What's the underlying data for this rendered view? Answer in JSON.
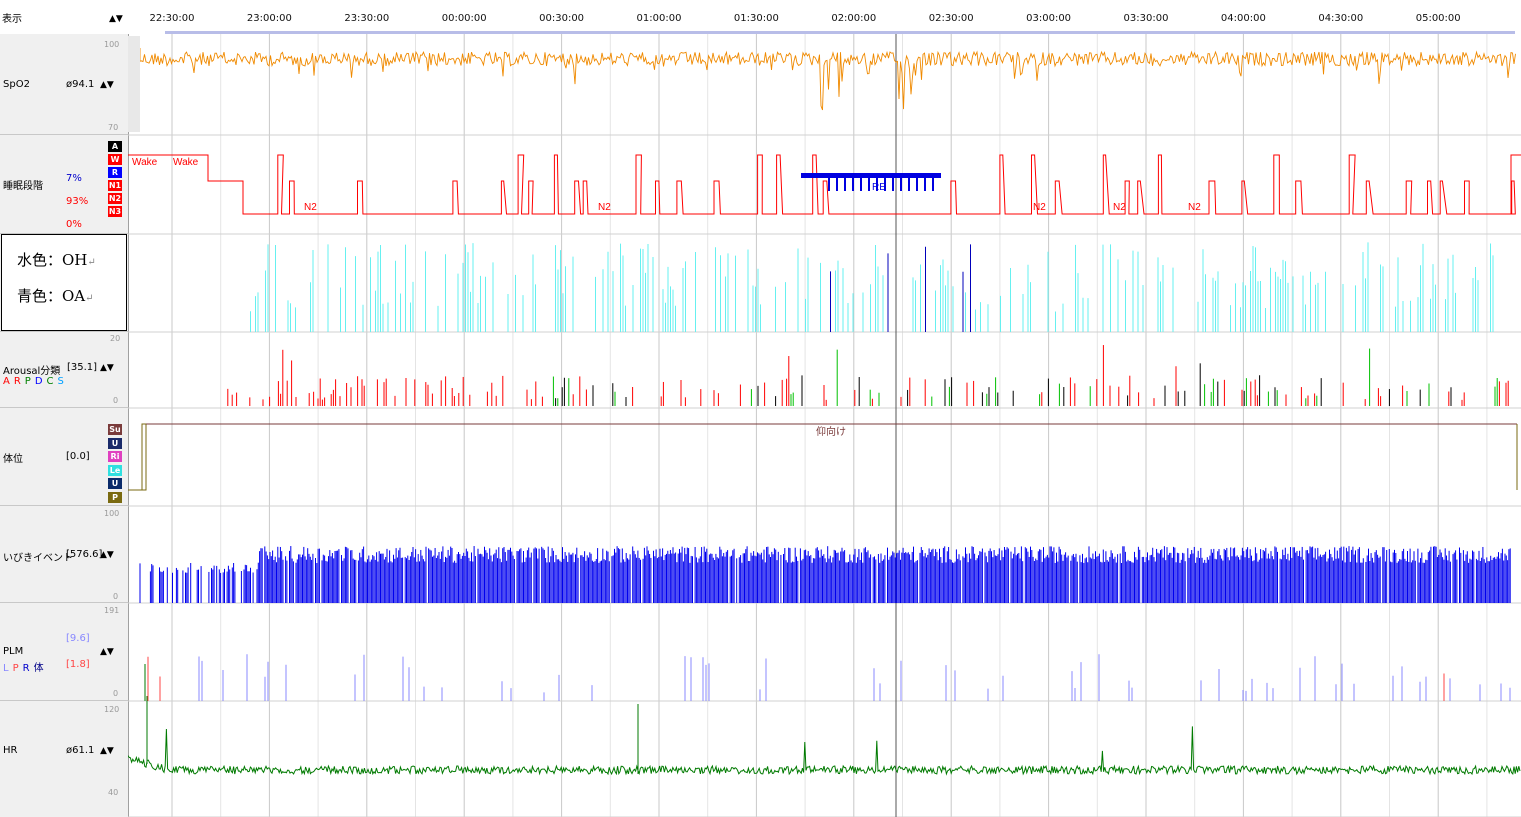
{
  "header": {
    "display_label": "表示",
    "arrows": "▲▼",
    "time_labels": [
      "22:30:00",
      "23:00:00",
      "23:30:00",
      "00:00:00",
      "00:30:00",
      "01:00:00",
      "01:30:00",
      "02:00:00",
      "02:30:00",
      "03:00:00",
      "03:30:00",
      "04:00:00",
      "04:30:00",
      "05:00:00"
    ]
  },
  "tracks": {
    "spo2": {
      "name": "SpO2",
      "avg": "ø94.1",
      "arrows": "▲▼",
      "scale_max": "100",
      "scale_min": "70"
    },
    "sleep": {
      "name": "睡眠段階",
      "pct_r": "7%",
      "pct_n1": "93%",
      "pct_n2": "0%",
      "stages": [
        "A",
        "W",
        "R",
        "N1",
        "N2",
        "N3"
      ],
      "stage_colors": [
        "#000000",
        "#ff0000",
        "#0000ff",
        "#ff0000",
        "#ff0000",
        "#ff0000"
      ],
      "labels": {
        "wake1": "Wake",
        "wake2": "Wake",
        "n2": "N2",
        "re": "RE"
      }
    },
    "legend": {
      "line1": "水色：OH",
      "line2": "青色：OA",
      "return_mark": "↵"
    },
    "arousal": {
      "name": "Arousal分類",
      "avg": "[35.1]",
      "arrows": "▲▼",
      "scale_max": "20",
      "scale_min": "0",
      "codes": [
        "A",
        "R",
        "P",
        "D",
        "C",
        "S"
      ],
      "code_colors": [
        "#ff0000",
        "#ff0000",
        "#008000",
        "#0000ff",
        "#008000",
        "#00a0ff"
      ]
    },
    "position": {
      "name": "体位",
      "avg": "[0.0]",
      "label": "仰向け",
      "boxes": [
        "Su",
        "U",
        "Ri",
        "Le",
        "U",
        "P"
      ],
      "box_colors": [
        "#7a3b3b",
        "#1a2a6a",
        "#e040c0",
        "#2fe0e0",
        "#0a2a6a",
        "#7a6a10"
      ]
    },
    "snore": {
      "name": "いびきイベント",
      "avg": "[576.6]",
      "arrows": "▲▼",
      "scale_max": "100",
      "scale_min": "0"
    },
    "plm": {
      "name": "PLM",
      "val1": "[9.6]",
      "val2": "[1.8]",
      "arrows": "▲▼",
      "codes": [
        "L",
        "P",
        "R",
        "体"
      ],
      "code_colors": [
        "#8888ff",
        "#ff4444",
        "#0000cc",
        "#000088"
      ],
      "scale_max": "191",
      "scale_min": "0"
    },
    "hr": {
      "name": "HR",
      "avg": "ø61.1",
      "arrows": "▲▼",
      "scale_max": "120",
      "scale_min": "40"
    }
  },
  "colors": {
    "spo2": "#f08a00",
    "sleep": "#ff0000",
    "rem": "#0000e0",
    "oh": "#66f0f0",
    "oa": "#0000bb",
    "snore": "#0000ee",
    "hr": "#007a00",
    "position": "#7a3b3b"
  }
}
